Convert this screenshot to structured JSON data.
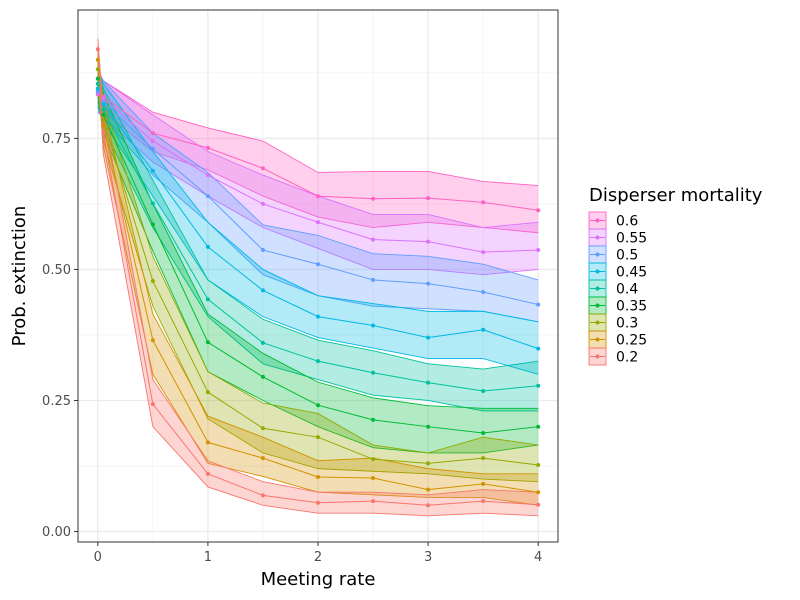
{
  "chart_data": {
    "type": "line",
    "xlabel": "Meeting rate",
    "ylabel": "Prob. extinction",
    "xlim": [
      -0.18,
      4.18
    ],
    "ylim": [
      -0.02,
      0.995
    ],
    "x_ticks": [
      0,
      1,
      2,
      3,
      4
    ],
    "x_tick_labels": [
      "0",
      "1",
      "2",
      "3",
      "4"
    ],
    "y_ticks": [
      0.0,
      0.25,
      0.5,
      0.75
    ],
    "y_tick_labels": [
      "0.00",
      "0.25",
      "0.50",
      "0.75"
    ],
    "grid": true,
    "legend_title": "Disperser mortality",
    "legend_position": "right",
    "x": [
      0,
      0.05,
      0.5,
      1,
      1.5,
      2,
      2.5,
      3,
      3.5,
      4
    ],
    "series": [
      {
        "name": "0.6",
        "color": "#FF61C3",
        "values": [
          0.834,
          0.83,
          0.76,
          0.732,
          0.693,
          0.64,
          0.635,
          0.636,
          0.628,
          0.613
        ],
        "lower": [
          0.8,
          0.8,
          0.725,
          0.69,
          0.64,
          0.6,
          0.58,
          0.59,
          0.58,
          0.57
        ],
        "upper": [
          0.87,
          0.86,
          0.8,
          0.77,
          0.745,
          0.685,
          0.687,
          0.687,
          0.668,
          0.66
        ]
      },
      {
        "name": "0.55",
        "color": "#DB72FB",
        "values": [
          0.836,
          0.826,
          0.745,
          0.68,
          0.625,
          0.59,
          0.557,
          0.553,
          0.533,
          0.537
        ],
        "lower": [
          0.8,
          0.79,
          0.705,
          0.64,
          0.58,
          0.54,
          0.5,
          0.5,
          0.49,
          0.5
        ],
        "upper": [
          0.88,
          0.86,
          0.795,
          0.725,
          0.68,
          0.64,
          0.605,
          0.605,
          0.58,
          0.59
        ]
      },
      {
        "name": "0.5",
        "color": "#619CFF",
        "values": [
          0.84,
          0.82,
          0.73,
          0.64,
          0.537,
          0.51,
          0.48,
          0.473,
          0.457,
          0.433
        ],
        "lower": [
          0.81,
          0.79,
          0.68,
          0.59,
          0.49,
          0.45,
          0.43,
          0.425,
          0.42,
          0.4
        ],
        "upper": [
          0.88,
          0.86,
          0.76,
          0.685,
          0.585,
          0.565,
          0.53,
          0.525,
          0.51,
          0.48
        ]
      },
      {
        "name": "0.45",
        "color": "#00B9E3",
        "values": [
          0.845,
          0.815,
          0.688,
          0.543,
          0.46,
          0.41,
          0.393,
          0.37,
          0.385,
          0.349
        ],
        "lower": [
          0.81,
          0.78,
          0.64,
          0.48,
          0.41,
          0.37,
          0.35,
          0.33,
          0.33,
          0.3
        ],
        "upper": [
          0.88,
          0.855,
          0.725,
          0.59,
          0.5,
          0.45,
          0.435,
          0.42,
          0.42,
          0.4
        ]
      },
      {
        "name": "0.4",
        "color": "#00C19F",
        "values": [
          0.854,
          0.805,
          0.626,
          0.443,
          0.36,
          0.325,
          0.303,
          0.284,
          0.268,
          0.278
        ],
        "lower": [
          0.82,
          0.77,
          0.58,
          0.41,
          0.32,
          0.29,
          0.26,
          0.25,
          0.23,
          0.23
        ],
        "upper": [
          0.89,
          0.845,
          0.67,
          0.48,
          0.405,
          0.365,
          0.345,
          0.32,
          0.31,
          0.325
        ]
      },
      {
        "name": "0.35",
        "color": "#00BA38",
        "values": [
          0.864,
          0.795,
          0.586,
          0.361,
          0.295,
          0.241,
          0.213,
          0.2,
          0.188,
          0.2
        ],
        "lower": [
          0.83,
          0.76,
          0.535,
          0.305,
          0.25,
          0.2,
          0.16,
          0.15,
          0.15,
          0.165
        ],
        "upper": [
          0.895,
          0.835,
          0.625,
          0.415,
          0.34,
          0.285,
          0.255,
          0.24,
          0.235,
          0.235
        ]
      },
      {
        "name": "0.3",
        "color": "#93AA00",
        "values": [
          0.882,
          0.785,
          0.478,
          0.266,
          0.197,
          0.18,
          0.138,
          0.13,
          0.14,
          0.127
        ],
        "lower": [
          0.85,
          0.745,
          0.43,
          0.215,
          0.15,
          0.12,
          0.115,
          0.11,
          0.1,
          0.095
        ],
        "upper": [
          0.91,
          0.82,
          0.525,
          0.305,
          0.245,
          0.225,
          0.165,
          0.15,
          0.18,
          0.165
        ]
      },
      {
        "name": "0.25",
        "color": "#D39200",
        "values": [
          0.9,
          0.775,
          0.365,
          0.17,
          0.14,
          0.104,
          0.102,
          0.08,
          0.091,
          0.075
        ],
        "lower": [
          0.87,
          0.735,
          0.3,
          0.13,
          0.105,
          0.075,
          0.07,
          0.065,
          0.065,
          0.05
        ],
        "upper": [
          0.925,
          0.81,
          0.415,
          0.22,
          0.18,
          0.135,
          0.14,
          0.12,
          0.11,
          0.11
        ]
      },
      {
        "name": "0.2",
        "color": "#F8766D",
        "values": [
          0.92,
          0.76,
          0.243,
          0.11,
          0.069,
          0.055,
          0.058,
          0.05,
          0.058,
          0.051
        ],
        "lower": [
          0.89,
          0.72,
          0.2,
          0.085,
          0.05,
          0.035,
          0.035,
          0.03,
          0.035,
          0.03
        ],
        "upper": [
          0.94,
          0.8,
          0.29,
          0.135,
          0.095,
          0.075,
          0.075,
          0.07,
          0.08,
          0.075
        ]
      }
    ]
  }
}
